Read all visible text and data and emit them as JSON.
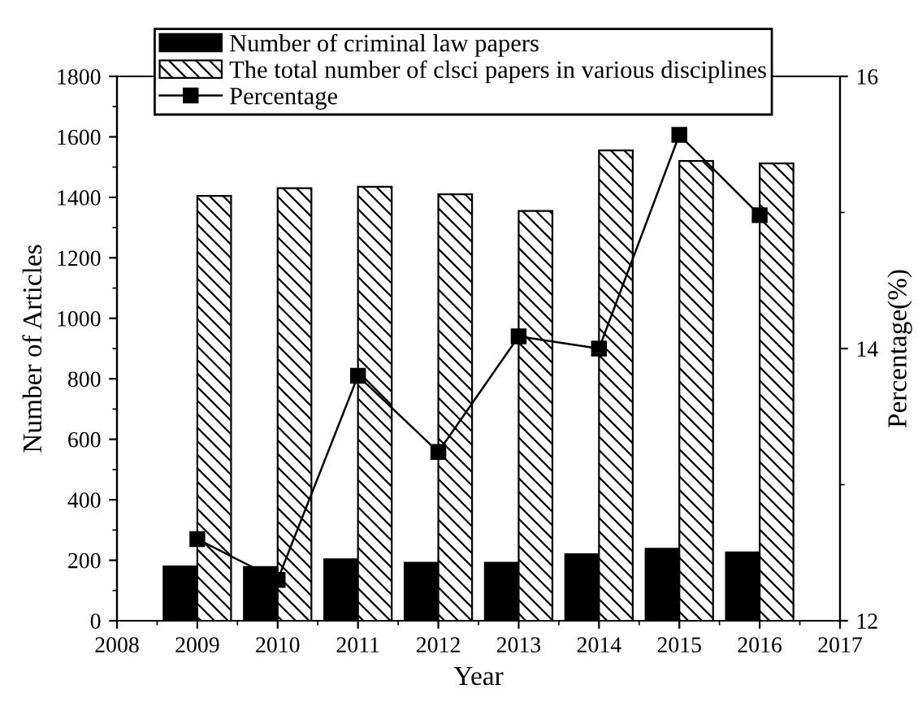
{
  "chart_data": {
    "type": "bar",
    "xlabel": "Year",
    "ylabel": "Number of Articles",
    "y2label": "Percentage(%)",
    "x": [
      2009,
      2010,
      2011,
      2012,
      2013,
      2014,
      2015,
      2016
    ],
    "series": [
      {
        "name": "Number of criminal law papers",
        "color": "#000000",
        "values": [
          180,
          178,
          203,
          192,
          192,
          220,
          238,
          226
        ]
      },
      {
        "name": "The total number of clsci papers in various disciplines",
        "color": "#000000",
        "values": [
          1405,
          1430,
          1435,
          1410,
          1355,
          1555,
          1520,
          1512
        ]
      },
      {
        "name": "Percentage",
        "type": "line",
        "axis": "y2",
        "color": "#000000",
        "marker": "square",
        "line_style": "solid",
        "values": [
          12.6,
          12.3,
          13.8,
          13.24,
          14.09,
          14.0,
          15.57,
          14.98
        ]
      }
    ],
    "xlim": [
      2008,
      2017
    ],
    "xticks": [
      2008,
      {
        "value": 2008.5,
        "label": null
      },
      2009,
      {
        "value": 2009.5,
        "label": null
      },
      2010,
      {
        "value": 2010.5,
        "label": null
      },
      2011,
      {
        "value": 2011.5,
        "label": null
      },
      2012,
      {
        "value": 2012.5,
        "label": null
      },
      2013,
      {
        "value": 2013.5,
        "label": null
      },
      2014,
      {
        "value": 2014.5,
        "label": null
      },
      2015,
      {
        "value": 2015.5,
        "label": null
      },
      2016,
      {
        "value": 2016.5,
        "label": null
      },
      2017
    ],
    "ylim": [
      0,
      1800
    ],
    "yticks": [
      0,
      {
        "value": 100,
        "label": null
      },
      200,
      {
        "value": 300,
        "label": null
      },
      400,
      {
        "value": 500,
        "label": null
      },
      600,
      {
        "value": 700,
        "label": null
      },
      800,
      {
        "value": 900,
        "label": null
      },
      1000,
      {
        "value": 1100,
        "label": null
      },
      1200,
      {
        "value": 1300,
        "label": null
      },
      1400,
      {
        "value": 1500,
        "label": null
      },
      1600,
      {
        "value": 1700,
        "label": null
      },
      1800
    ],
    "y2lim": [
      12,
      16
    ],
    "y2ticks": [
      12,
      {
        "value": 13,
        "label": null
      },
      14,
      {
        "value": 15,
        "label": null
      },
      16
    ],
    "legend": "top",
    "grid": false
  }
}
